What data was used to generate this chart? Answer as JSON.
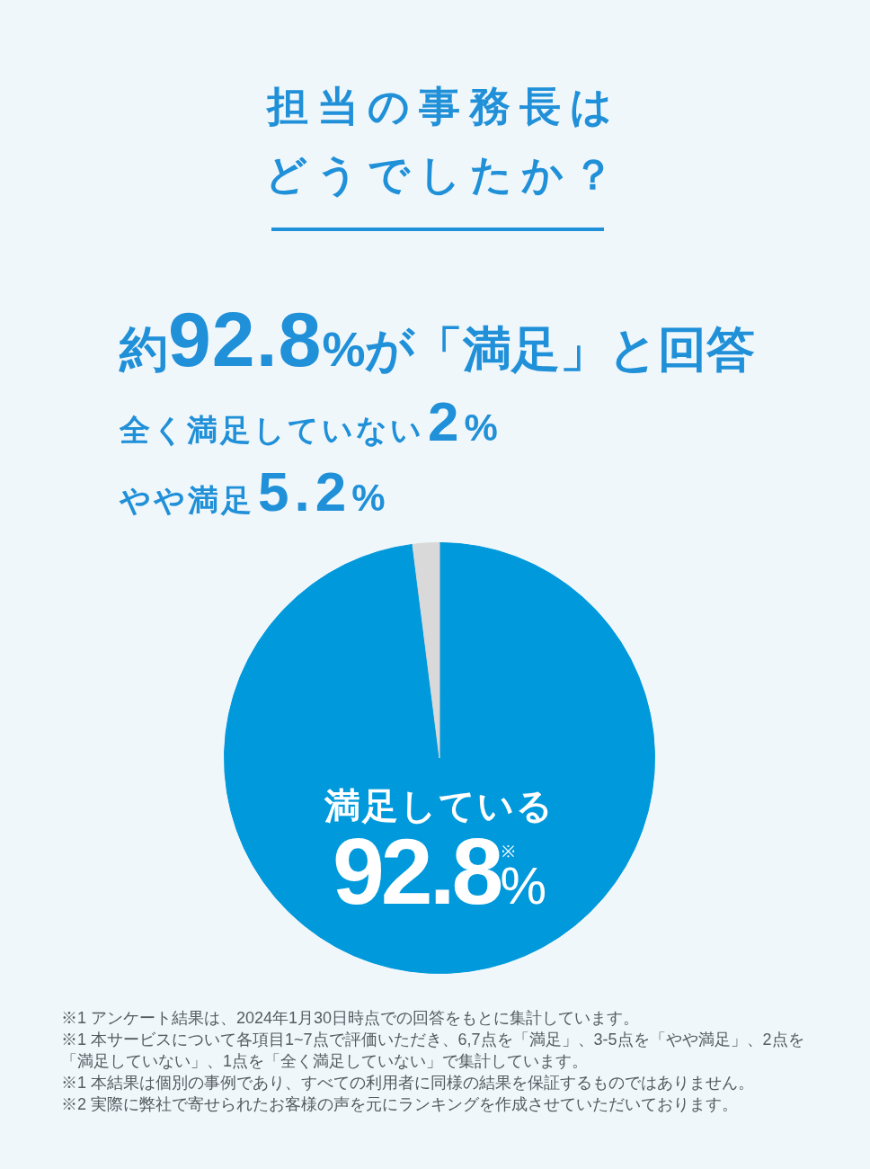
{
  "chart_data": {
    "type": "pie",
    "title": "担当の事務長はどうでしたか？",
    "subtitle": "約92.8%が「満足」と回答",
    "categories": [
      "満足している",
      "やや満足",
      "全く満足していない"
    ],
    "values": [
      92.8,
      5.2,
      2
    ],
    "colors": [
      "#0099dc",
      "#0099dc",
      "#d9d9d9"
    ],
    "value_labels": [
      "92.8$^{※}$%",
      "5.2%",
      "2%"
    ],
    "annotations": [
      "※1 アンケート結果は、2024年1月30日時点での回答をもとに集計しています。",
      "※1 本サービスについて各項目1~7点で評価いただき、6,7点を「満足」、3-5点を「やや満足」、2点を「満足していない」、1点を「全く満足していない」で集計しています。",
      "※1 本結果は個別の事例であり、すべての利用者に同様の結果を保証するものではありません。",
      "※2 実際に弊社で寄せられたお客様の声を元にランキングを作成させていただいております。"
    ]
  }
}
